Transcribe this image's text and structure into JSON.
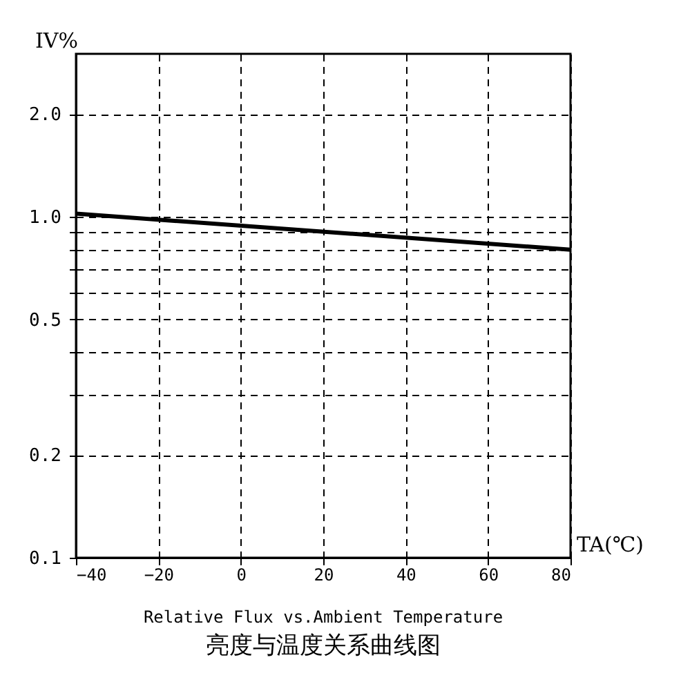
{
  "chart_data": {
    "type": "line",
    "title": "Relative Flux vs.Ambient Temperature",
    "subtitle": "亮度与温度关系曲线图",
    "xlabel": "TA(℃)",
    "ylabel": "IV%",
    "x": [
      -40,
      80
    ],
    "series": [
      {
        "color": "#000000",
        "values": [
          1.02,
          0.8
        ]
      }
    ],
    "xlim": [
      -40,
      80
    ],
    "xticks": [
      -40,
      -20,
      0,
      20,
      40,
      60,
      80
    ],
    "ylim": [
      0.1,
      3
    ],
    "yticks": [
      {
        "value": 0.1,
        "label": "0.1"
      },
      {
        "value": 0.2,
        "label": "0.2"
      },
      {
        "value": 0.3,
        "label": null
      },
      {
        "value": 0.4,
        "label": null
      },
      {
        "value": 0.5,
        "label": "0.5"
      },
      {
        "value": 0.6,
        "label": null
      },
      {
        "value": 0.7,
        "label": null
      },
      {
        "value": 0.8,
        "label": null
      },
      {
        "value": 0.9,
        "label": null
      },
      {
        "value": 1,
        "label": "1.0"
      },
      {
        "value": 2,
        "label": "2.0"
      }
    ],
    "log": true,
    "grid": true
  }
}
